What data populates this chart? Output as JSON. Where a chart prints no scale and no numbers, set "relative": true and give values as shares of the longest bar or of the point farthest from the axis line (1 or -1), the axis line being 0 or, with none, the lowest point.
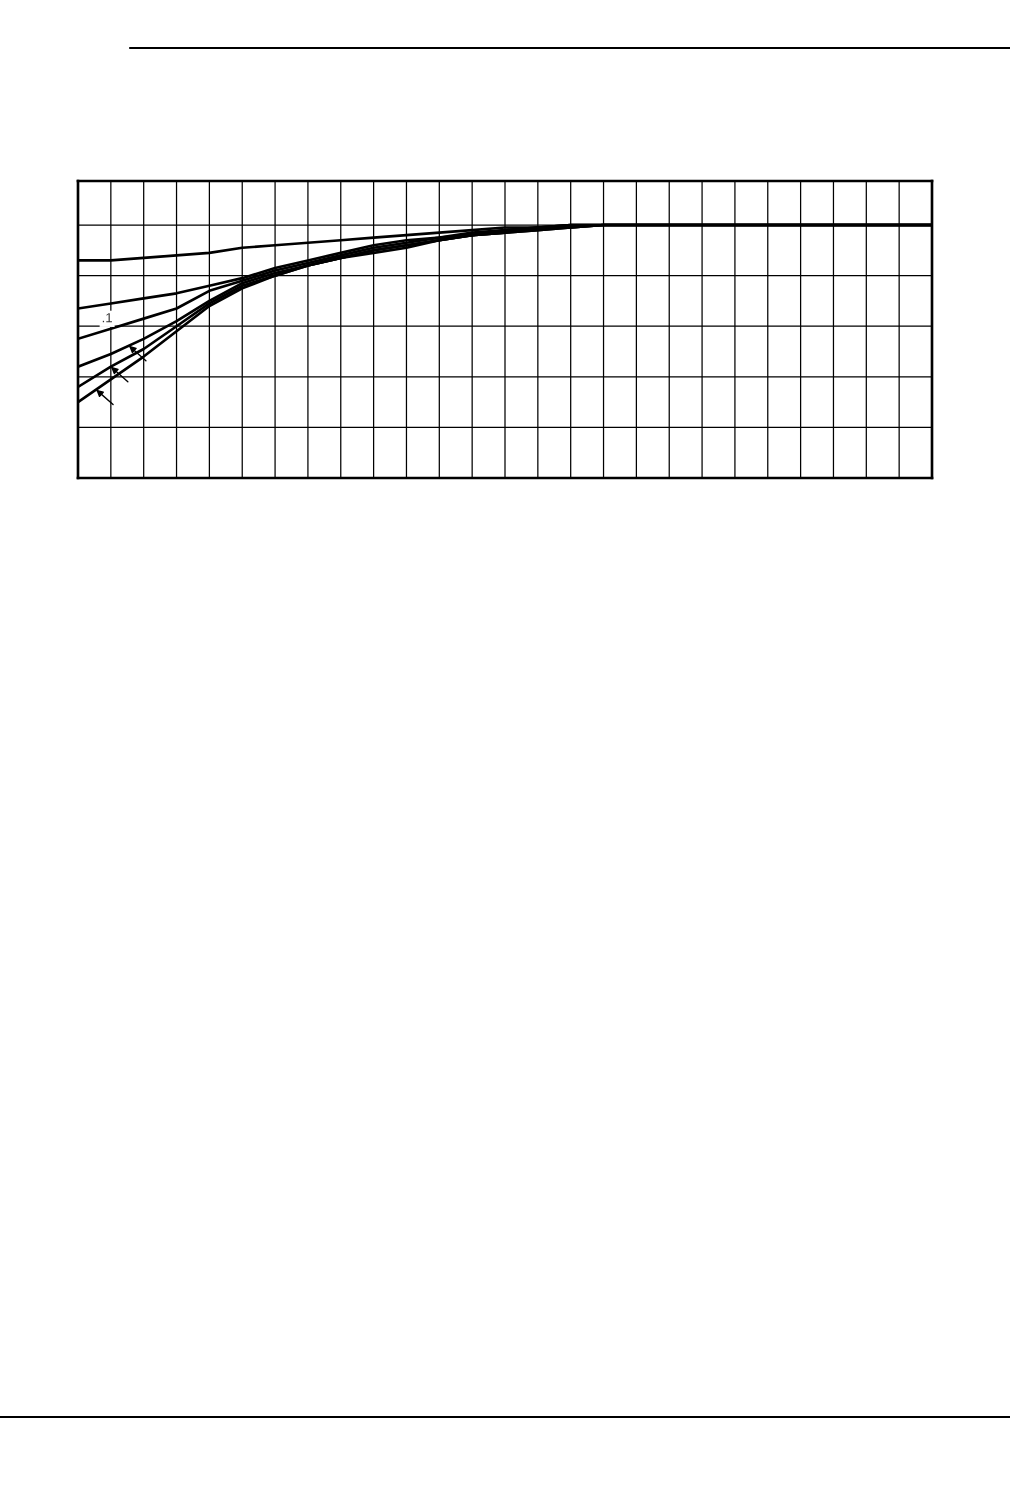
{
  "chart_data": {
    "type": "line",
    "relative": true,
    "grid": true,
    "categories": [
      null,
      null,
      null,
      null,
      null,
      null,
      null,
      null,
      null,
      null,
      null,
      null,
      null,
      null,
      null,
      null,
      null,
      null,
      null,
      null,
      null,
      null,
      null,
      null,
      null,
      null,
      null
    ],
    "series": [
      {
        "color": "#000000",
        "values": [
          0.86,
          0.86,
          0.87,
          0.88,
          0.89,
          0.91,
          0.92,
          0.93,
          0.94,
          0.95,
          0.96,
          0.97,
          0.98,
          0.99,
          0.99,
          1.0,
          1.0,
          1.0,
          1.0,
          1.0,
          1.0,
          1.0,
          1.0,
          1.0,
          1.0,
          1.0,
          1.0
        ]
      },
      {
        "color": "#000000",
        "values": [
          0.67,
          0.69,
          0.71,
          0.73,
          0.76,
          0.79,
          0.83,
          0.86,
          0.89,
          0.92,
          0.94,
          0.95,
          0.97,
          0.98,
          0.99,
          1.0,
          1.0,
          1.0,
          1.0,
          1.0,
          1.0,
          1.0,
          1.0,
          1.0,
          1.0,
          1.0,
          1.0
        ]
      },
      {
        "name": ".1",
        "color": "#000000",
        "values": [
          0.55,
          0.59,
          0.63,
          0.67,
          0.74,
          0.78,
          0.82,
          0.85,
          0.88,
          0.91,
          0.93,
          0.95,
          0.96,
          0.98,
          0.99,
          1.0,
          1.0,
          1.0,
          1.0,
          1.0,
          1.0,
          1.0,
          1.0,
          1.0,
          1.0,
          1.0,
          1.0
        ]
      },
      {
        "color": "#000000",
        "values": [
          0.44,
          0.49,
          0.55,
          0.62,
          0.7,
          0.77,
          0.81,
          0.84,
          0.87,
          0.9,
          0.92,
          0.94,
          0.96,
          0.97,
          0.99,
          0.99,
          1.0,
          1.0,
          1.0,
          1.0,
          1.0,
          1.0,
          1.0,
          1.0,
          1.0,
          1.0,
          1.0
        ]
      },
      {
        "color": "#000000",
        "values": [
          0.36,
          0.44,
          0.51,
          0.6,
          0.69,
          0.76,
          0.8,
          0.84,
          0.87,
          0.9,
          0.92,
          0.94,
          0.96,
          0.97,
          0.98,
          0.99,
          1.0,
          1.0,
          1.0,
          1.0,
          1.0,
          1.0,
          1.0,
          1.0,
          1.0,
          1.0,
          1.0
        ]
      },
      {
        "color": "#000000",
        "values": [
          0.3,
          0.39,
          0.48,
          0.58,
          0.68,
          0.75,
          0.8,
          0.84,
          0.87,
          0.89,
          0.91,
          0.94,
          0.96,
          0.97,
          0.98,
          0.99,
          1.0,
          1.0,
          1.0,
          1.0,
          1.0,
          1.0,
          1.0,
          1.0,
          1.0,
          1.0,
          1.0
        ]
      }
    ]
  }
}
